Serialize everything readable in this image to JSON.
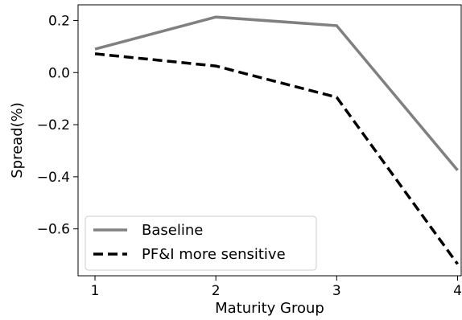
{
  "chart_data": {
    "type": "line",
    "title": "",
    "xlabel": "Maturity Group",
    "ylabel": "Spread(%)",
    "x": [
      1,
      2,
      3,
      4
    ],
    "x_ticks": [
      "1",
      "2",
      "3",
      "4"
    ],
    "xlim": [
      0.86,
      4.03
    ],
    "y_ticks": [
      0.2,
      0.0,
      -0.2,
      -0.4,
      -0.6
    ],
    "y_tick_labels": [
      "0.2",
      "0.0",
      "−0.2",
      "−0.4",
      "−0.6"
    ],
    "ylim": [
      -0.78,
      0.26
    ],
    "grid": false,
    "legend_position": "lower-left",
    "series": [
      {
        "name": "Baseline",
        "values": [
          0.09,
          0.213,
          0.18,
          -0.375
        ],
        "color": "#808080",
        "style": "solid"
      },
      {
        "name": "PF&I more sensitive",
        "values": [
          0.072,
          0.025,
          -0.095,
          -0.735
        ],
        "color": "#000000",
        "style": "dashed"
      }
    ]
  }
}
